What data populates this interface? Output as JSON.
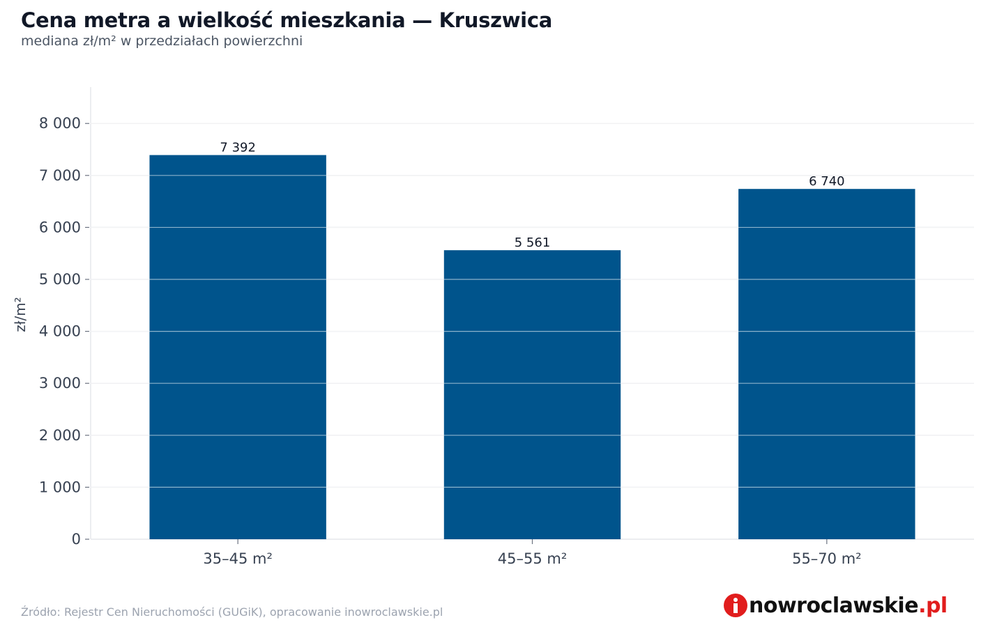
{
  "header": {
    "title": "Cena metra a wielkość mieszkania — Kruszwica",
    "subtitle": "mediana zł/m² w przedziałach powierzchni"
  },
  "footer": {
    "source": "Źródło: Rejestr Cen Nieruchomości (GUGiK), opracowanie inowroclawskie.pl",
    "logo_text": "nowroclawskie",
    "logo_tld": ".pl",
    "logo_icon": "info-dot-icon"
  },
  "colors": {
    "bar": "#00548c",
    "grid": "#e5e7eb",
    "logo_accent": "#e11d1d"
  },
  "chart_data": {
    "type": "bar",
    "title": "Cena metra a wielkość mieszkania — Kruszwica",
    "subtitle": "mediana zł/m² w przedziałach powierzchni",
    "xlabel": "",
    "ylabel": "zł/m²",
    "categories": [
      "35–45 m²",
      "45–55 m²",
      "55–70 m²"
    ],
    "values": [
      7392,
      5561,
      6740
    ],
    "value_labels": [
      "7 392",
      "5 561",
      "6 740"
    ],
    "yticks": [
      0,
      1000,
      2000,
      3000,
      4000,
      5000,
      6000,
      7000,
      8000
    ],
    "ytick_labels": [
      "0",
      "1 000",
      "2 000",
      "3 000",
      "4 000",
      "5 000",
      "6 000",
      "7 000",
      "8 000"
    ],
    "ylim": [
      0,
      8700
    ],
    "grid": true,
    "legend": "none"
  }
}
